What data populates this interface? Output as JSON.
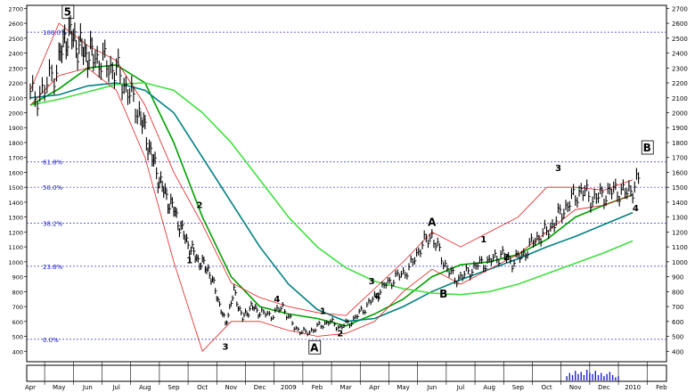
{
  "chart_data": {
    "type": "line",
    "title": "",
    "xlabel": "",
    "ylabel": "",
    "ylim": [
      330,
      2720
    ],
    "y_ticks": [
      400,
      500,
      600,
      700,
      800,
      900,
      1000,
      1100,
      1200,
      1300,
      1400,
      1500,
      1600,
      1700,
      1800,
      1900,
      2000,
      2100,
      2200,
      2300,
      2400,
      2500,
      2600,
      2700
    ],
    "month_labels": [
      "Apr",
      "May",
      "Jun",
      "Jul",
      "Aug",
      "Sep",
      "Oct",
      "Nov",
      "Dec",
      "2009",
      "Feb",
      "Mar",
      "Apr",
      "May",
      "Jun",
      "Jul",
      "Aug",
      "Sep",
      "Oct",
      "Nov",
      "Dec",
      "2010",
      "Feb"
    ],
    "grid": false,
    "legend": "none",
    "fib_levels": [
      {
        "label": "100.0%",
        "value": 2540
      },
      {
        "label": "61.8%",
        "value": 1670
      },
      {
        "label": "50.0%",
        "value": 1500
      },
      {
        "label": "38.2%",
        "value": 1260
      },
      {
        "label": "23.6%",
        "value": 970
      },
      {
        "label": "0.0%",
        "value": 480
      }
    ],
    "price_series": {
      "name": "",
      "x": [
        0,
        0.5,
        1,
        1.3,
        1.6,
        1.9,
        2.2,
        2.6,
        3,
        3.4,
        3.8,
        4.1,
        4.4,
        4.7,
        5,
        5.3,
        5.6,
        5.9,
        6.2,
        6.5,
        6.8,
        7.1,
        7.4,
        7.7,
        8,
        8.4,
        8.8,
        9.2,
        9.6,
        10,
        10.4,
        10.8,
        11.2,
        11.6,
        12,
        12.4,
        12.8,
        13.2,
        13.6,
        14,
        14.4,
        14.8,
        15.2,
        15.6,
        16,
        16.4,
        16.8,
        17.2,
        17.6,
        18,
        18.4,
        18.8,
        19.2,
        19.6,
        20,
        20.4,
        20.8,
        21.2
      ],
      "values": [
        2100,
        2150,
        2350,
        2540,
        2470,
        2400,
        2380,
        2330,
        2280,
        2150,
        2000,
        1800,
        1600,
        1450,
        1350,
        1200,
        1080,
        1000,
        950,
        780,
        580,
        800,
        620,
        700,
        660,
        640,
        700,
        560,
        520,
        560,
        600,
        560,
        600,
        680,
        760,
        850,
        900,
        950,
        1100,
        1180,
        1000,
        880,
        920,
        980,
        1000,
        1050,
        1000,
        1050,
        1150,
        1200,
        1300,
        1400,
        1480,
        1420,
        1450,
        1480,
        1460,
        1540
      ]
    },
    "moving_averages": [
      {
        "name": "",
        "color": "#00a000",
        "x": [
          0,
          1,
          2,
          3,
          4,
          5,
          6,
          7,
          8,
          9,
          10,
          11,
          12,
          13,
          14,
          15,
          16,
          17,
          18,
          19,
          20,
          21
        ],
        "values": [
          2050,
          2160,
          2300,
          2320,
          2200,
          1800,
          1300,
          900,
          700,
          650,
          620,
          570,
          650,
          750,
          900,
          980,
          1000,
          1050,
          1150,
          1300,
          1380,
          1450
        ]
      },
      {
        "name": "",
        "color": "#008080",
        "x": [
          0,
          1,
          2,
          3,
          4,
          5,
          6,
          7,
          8,
          9,
          10,
          11,
          12,
          13,
          14,
          15,
          16,
          17,
          18,
          19,
          20,
          21
        ],
        "values": [
          2100,
          2120,
          2180,
          2200,
          2150,
          2000,
          1700,
          1400,
          1100,
          850,
          680,
          600,
          620,
          700,
          800,
          880,
          950,
          1020,
          1100,
          1170,
          1250,
          1330
        ]
      },
      {
        "name": "",
        "color": "#40e040",
        "x": [
          0,
          1,
          2,
          3,
          4,
          5,
          6,
          7,
          8,
          9,
          10,
          11,
          12,
          13,
          14,
          15,
          16,
          17,
          18,
          19,
          20,
          21
        ],
        "values": [
          2050,
          2090,
          2140,
          2190,
          2200,
          2150,
          2000,
          1800,
          1550,
          1300,
          1100,
          960,
          870,
          820,
          790,
          780,
          800,
          850,
          920,
          990,
          1060,
          1140
        ]
      }
    ],
    "bands": [
      {
        "color": "#e02020",
        "x": [
          0,
          1,
          2,
          3,
          4,
          5,
          6,
          7,
          8,
          9,
          10,
          11,
          12,
          13,
          14,
          15,
          16,
          17,
          18,
          19,
          20,
          21
        ],
        "upper": [
          2150,
          2600,
          2450,
          2350,
          2050,
          1600,
          1250,
          860,
          760,
          700,
          660,
          640,
          820,
          1000,
          1200,
          1100,
          1200,
          1300,
          1500,
          1500,
          1480,
          1550
        ],
        "lower": [
          2050,
          2250,
          2300,
          2150,
          1700,
          1000,
          400,
          600,
          600,
          540,
          500,
          520,
          600,
          800,
          950,
          850,
          950,
          1050,
          1200,
          1350,
          1380,
          1450
        ]
      }
    ],
    "wave_labels": [
      {
        "label": "5",
        "x": 1.3,
        "value": 2650
      },
      {
        "label": "1",
        "x": 5.55,
        "value": 990
      },
      {
        "label": "2",
        "x": 5.9,
        "value": 1360
      },
      {
        "label": "3",
        "x": 6.8,
        "value": 410
      },
      {
        "label": "4",
        "x": 8.6,
        "value": 730
      },
      {
        "label": "A",
        "x": 9.9,
        "value": 400
      },
      {
        "label": "1",
        "x": 10.2,
        "value": 650
      },
      {
        "label": "2",
        "x": 10.8,
        "value": 500
      },
      {
        "label": "3",
        "x": 11.9,
        "value": 850
      },
      {
        "label": "4",
        "x": 12.1,
        "value": 750
      },
      {
        "label": "A",
        "x": 14.0,
        "value": 1240
      },
      {
        "label": "B",
        "x": 14.4,
        "value": 760
      },
      {
        "label": "1",
        "x": 15.8,
        "value": 1130
      },
      {
        "label": "2",
        "x": 16.6,
        "value": 1010
      },
      {
        "label": "3",
        "x": 18.4,
        "value": 1610
      },
      {
        "label": "4",
        "x": 21.1,
        "value": 1340
      },
      {
        "label": "B",
        "x": 21.5,
        "value": 1740
      }
    ],
    "volume": {
      "x": [
        18.7,
        18.8,
        18.9,
        19.0,
        19.1,
        19.2,
        19.3,
        19.4,
        19.5,
        19.6,
        19.7,
        19.8,
        19.9,
        20.0,
        20.1,
        20.2,
        20.3,
        20.4,
        20.5
      ],
      "values": [
        0.4,
        0.7,
        0.5,
        0.9,
        0.6,
        0.8,
        0.5,
        1.0,
        0.7,
        0.6,
        0.9,
        0.5,
        0.7,
        0.4,
        0.6,
        0.8,
        0.5,
        0.3,
        0.4
      ]
    }
  }
}
